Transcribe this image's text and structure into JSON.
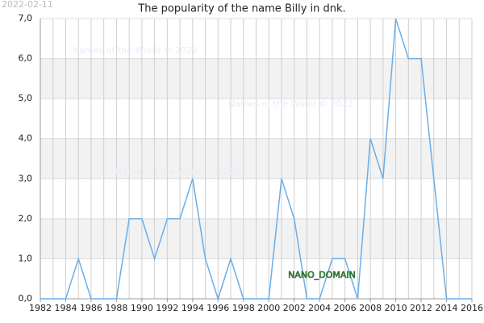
{
  "chart_data": {
    "type": "line",
    "title": "The popularity of the name Billy in dnk.",
    "date_stamp": "2022-02-11",
    "watermarks": [
      "Names of the World © 2022",
      "Names of the World © 2022",
      "Names of the World © 2022"
    ],
    "annotation": "NANO_DOMAIN",
    "x": [
      1982,
      1983,
      1984,
      1985,
      1986,
      1987,
      1988,
      1989,
      1990,
      1991,
      1992,
      1993,
      1994,
      1995,
      1996,
      1997,
      1998,
      1999,
      2000,
      2001,
      2002,
      2003,
      2004,
      2005,
      2006,
      2007,
      2008,
      2009,
      2010,
      2011,
      2012,
      2013,
      2014,
      2015,
      2016
    ],
    "series": [
      {
        "name": "Billy",
        "color": "#6aaee8",
        "values": [
          0,
          0,
          0,
          1,
          0,
          0,
          0,
          2,
          2,
          1,
          2,
          2,
          3,
          1,
          0,
          1,
          0,
          0,
          0,
          3,
          2,
          0,
          0,
          1,
          1,
          0,
          4,
          3,
          7,
          6,
          6,
          3,
          0,
          0,
          0
        ]
      }
    ],
    "xlim": [
      1982,
      2016
    ],
    "xticks": [
      1982,
      1984,
      1986,
      1988,
      1990,
      1992,
      1994,
      1996,
      1998,
      2000,
      2002,
      2004,
      2006,
      2008,
      2010,
      2012,
      2014,
      2016
    ],
    "ylim": [
      0,
      7
    ],
    "yticks": [
      {
        "value": 0,
        "label": "0,0"
      },
      {
        "value": 1,
        "label": "1,0"
      },
      {
        "value": 2,
        "label": "2,0"
      },
      {
        "value": 3,
        "label": "3,0"
      },
      {
        "value": 4,
        "label": "4,0"
      },
      {
        "value": 5,
        "label": "5,0"
      },
      {
        "value": 6,
        "label": "6,0"
      },
      {
        "value": 7,
        "label": "7,0"
      }
    ],
    "grid": true
  }
}
